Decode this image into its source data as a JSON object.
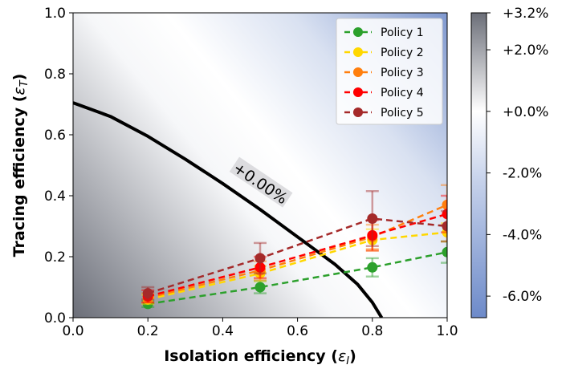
{
  "chart_data": {
    "type": "scatter",
    "title": "",
    "xlabel": "Isolation efficiency (",
    "xlabel_symbol": "ε",
    "xlabel_sub": "I",
    "ylabel": "Tracing efficiency (",
    "ylabel_symbol": "ε",
    "ylabel_sub": "T",
    "xlim": [
      0.0,
      1.0
    ],
    "ylim": [
      0.0,
      1.0
    ],
    "xticks": [
      "0.0",
      "0.2",
      "0.4",
      "0.6",
      "0.8",
      "1.0"
    ],
    "yticks": [
      "0.0",
      "0.2",
      "0.4",
      "0.6",
      "0.8",
      "1.0"
    ],
    "grid": false,
    "legend_position": "top-right",
    "background_heatmap": {
      "colormap": "gray-white-blue",
      "colorbar_ticks": [
        {
          "label": "+3.2%",
          "value": 3.2
        },
        {
          "label": "+2.0%",
          "value": 2.0
        },
        {
          "label": "+0.0%",
          "value": 0.0
        },
        {
          "label": "-2.0%",
          "value": -2.0
        },
        {
          "label": "-4.0%",
          "value": -4.0
        },
        {
          "label": "-6.0%",
          "value": -6.0
        }
      ],
      "range": [
        -6.7,
        3.2
      ],
      "colors": {
        "high": "#6b6e78",
        "mid": "#ffffff",
        "low": "#6d8ac9"
      }
    },
    "contour": {
      "label": "+0.00%",
      "points": [
        [
          0.0,
          0.705
        ],
        [
          0.1,
          0.66
        ],
        [
          0.2,
          0.595
        ],
        [
          0.3,
          0.52
        ],
        [
          0.4,
          0.44
        ],
        [
          0.5,
          0.355
        ],
        [
          0.6,
          0.265
        ],
        [
          0.7,
          0.175
        ],
        [
          0.76,
          0.11
        ],
        [
          0.8,
          0.05
        ],
        [
          0.825,
          0.0
        ]
      ]
    },
    "x": [
      0.2,
      0.5,
      0.8,
      1.0
    ],
    "series": [
      {
        "name": "Policy 1",
        "color": "#2ca02c",
        "values": [
          0.045,
          0.1,
          0.165,
          0.215
        ],
        "errors": [
          0.01,
          0.02,
          0.03,
          0.035
        ]
      },
      {
        "name": "Policy 2",
        "color": "#ffd700",
        "values": [
          0.06,
          0.145,
          0.255,
          0.28
        ],
        "errors": [
          0.015,
          0.025,
          0.035,
          0.03
        ]
      },
      {
        "name": "Policy 3",
        "color": "#ff7f0e",
        "values": [
          0.065,
          0.155,
          0.265,
          0.37
        ],
        "errors": [
          0.015,
          0.03,
          0.04,
          0.065
        ]
      },
      {
        "name": "Policy 4",
        "color": "#ff0000",
        "values": [
          0.07,
          0.165,
          0.27,
          0.34
        ],
        "errors": [
          0.02,
          0.035,
          0.05,
          0.06
        ]
      },
      {
        "name": "Policy 5",
        "color": "#a52a2a",
        "values": [
          0.08,
          0.195,
          0.325,
          0.3
        ],
        "errors": [
          0.02,
          0.05,
          0.09,
          0.05
        ]
      }
    ]
  }
}
